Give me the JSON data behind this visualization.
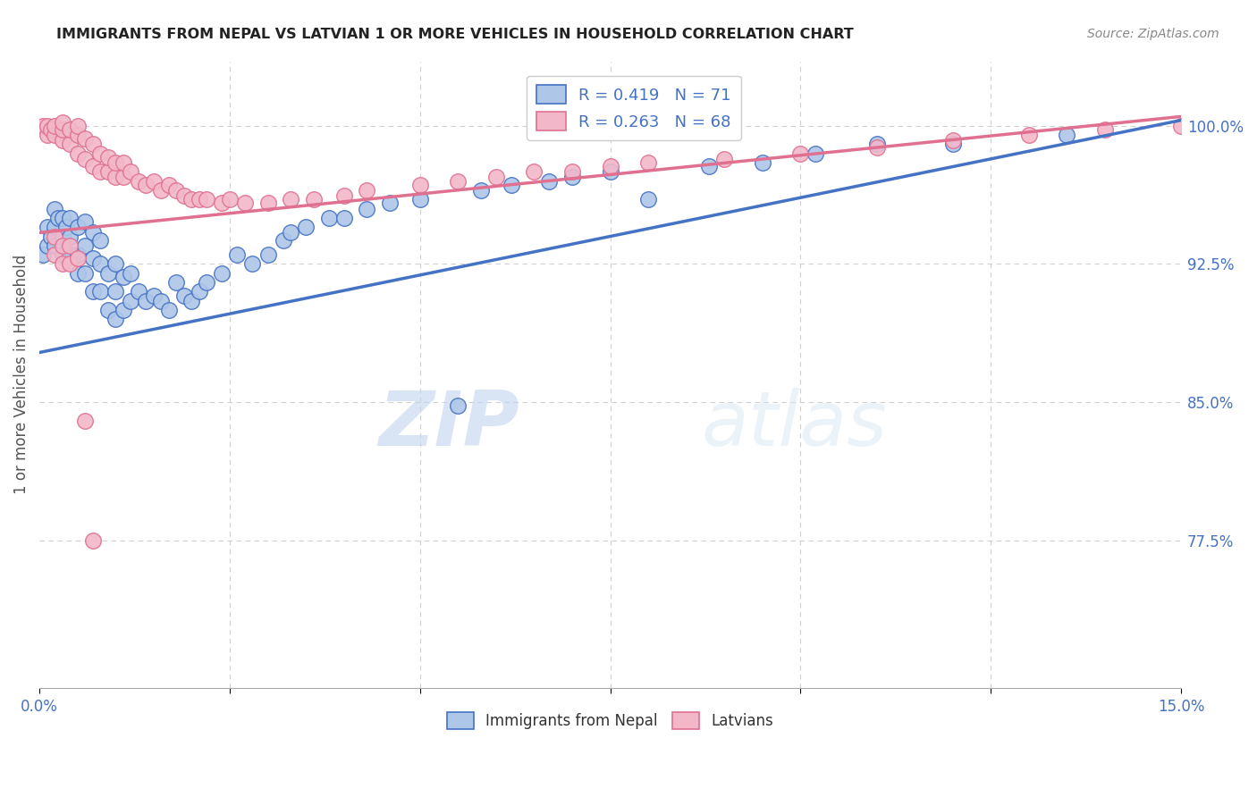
{
  "title": "IMMIGRANTS FROM NEPAL VS LATVIAN 1 OR MORE VEHICLES IN HOUSEHOLD CORRELATION CHART",
  "source": "Source: ZipAtlas.com",
  "ylabel": "1 or more Vehicles in Household",
  "ytick_labels": [
    "77.5%",
    "85.0%",
    "92.5%",
    "100.0%"
  ],
  "ytick_values": [
    0.775,
    0.85,
    0.925,
    1.0
  ],
  "xlim": [
    0.0,
    0.15
  ],
  "ylim": [
    0.695,
    1.035
  ],
  "color_nepal": "#aec6e8",
  "color_latvian": "#f2b8ca",
  "color_nepal_edge": "#4472c4",
  "color_latvian_edge": "#e07090",
  "color_nepal_line": "#4472c4",
  "color_latvian_line": "#e07090",
  "color_text_blue": "#4472c4",
  "watermark_zip": "ZIP",
  "watermark_atlas": "atlas",
  "background_color": "#ffffff",
  "grid_color": "#d0d0d0",
  "nepal_line_x0": 0.0,
  "nepal_line_y0": 0.877,
  "nepal_line_x1": 0.15,
  "nepal_line_y1": 1.003,
  "latvian_line_x0": 0.0,
  "latvian_line_y0": 0.942,
  "latvian_line_x1": 0.15,
  "latvian_line_y1": 1.005,
  "nepal_x": [
    0.0005,
    0.001,
    0.001,
    0.0015,
    0.002,
    0.002,
    0.002,
    0.0025,
    0.003,
    0.003,
    0.003,
    0.0035,
    0.004,
    0.004,
    0.004,
    0.005,
    0.005,
    0.005,
    0.006,
    0.006,
    0.006,
    0.007,
    0.007,
    0.007,
    0.008,
    0.008,
    0.008,
    0.009,
    0.009,
    0.01,
    0.01,
    0.01,
    0.011,
    0.011,
    0.012,
    0.012,
    0.013,
    0.014,
    0.015,
    0.016,
    0.017,
    0.018,
    0.019,
    0.02,
    0.021,
    0.022,
    0.024,
    0.026,
    0.028,
    0.03,
    0.032,
    0.033,
    0.035,
    0.038,
    0.04,
    0.043,
    0.046,
    0.05,
    0.055,
    0.058,
    0.062,
    0.067,
    0.07,
    0.075,
    0.08,
    0.088,
    0.095,
    0.102,
    0.11,
    0.12,
    0.135
  ],
  "nepal_y": [
    0.93,
    0.935,
    0.945,
    0.94,
    0.935,
    0.945,
    0.955,
    0.95,
    0.93,
    0.94,
    0.95,
    0.945,
    0.93,
    0.94,
    0.95,
    0.92,
    0.93,
    0.945,
    0.92,
    0.935,
    0.948,
    0.91,
    0.928,
    0.942,
    0.91,
    0.925,
    0.938,
    0.9,
    0.92,
    0.895,
    0.91,
    0.925,
    0.9,
    0.918,
    0.905,
    0.92,
    0.91,
    0.905,
    0.908,
    0.905,
    0.9,
    0.915,
    0.908,
    0.905,
    0.91,
    0.915,
    0.92,
    0.93,
    0.925,
    0.93,
    0.938,
    0.942,
    0.945,
    0.95,
    0.95,
    0.955,
    0.958,
    0.96,
    0.848,
    0.965,
    0.968,
    0.97,
    0.972,
    0.975,
    0.96,
    0.978,
    0.98,
    0.985,
    0.99,
    0.99,
    0.995
  ],
  "latvian_x": [
    0.0005,
    0.001,
    0.001,
    0.0015,
    0.002,
    0.002,
    0.003,
    0.003,
    0.003,
    0.004,
    0.004,
    0.005,
    0.005,
    0.005,
    0.006,
    0.006,
    0.007,
    0.007,
    0.008,
    0.008,
    0.009,
    0.009,
    0.01,
    0.01,
    0.011,
    0.011,
    0.012,
    0.013,
    0.014,
    0.015,
    0.016,
    0.017,
    0.018,
    0.019,
    0.02,
    0.021,
    0.022,
    0.024,
    0.025,
    0.027,
    0.03,
    0.033,
    0.036,
    0.04,
    0.043,
    0.05,
    0.055,
    0.06,
    0.065,
    0.07,
    0.075,
    0.08,
    0.09,
    0.1,
    0.11,
    0.12,
    0.13,
    0.14,
    0.15,
    0.002,
    0.002,
    0.003,
    0.003,
    0.004,
    0.004,
    0.005,
    0.006,
    0.007
  ],
  "latvian_y": [
    1.0,
    0.995,
    1.0,
    0.998,
    0.995,
    1.0,
    0.992,
    0.998,
    1.002,
    0.99,
    0.998,
    0.985,
    0.995,
    1.0,
    0.982,
    0.993,
    0.978,
    0.99,
    0.975,
    0.985,
    0.975,
    0.983,
    0.972,
    0.98,
    0.972,
    0.98,
    0.975,
    0.97,
    0.968,
    0.97,
    0.965,
    0.968,
    0.965,
    0.962,
    0.96,
    0.96,
    0.96,
    0.958,
    0.96,
    0.958,
    0.958,
    0.96,
    0.96,
    0.962,
    0.965,
    0.968,
    0.97,
    0.972,
    0.975,
    0.975,
    0.978,
    0.98,
    0.982,
    0.985,
    0.988,
    0.992,
    0.995,
    0.998,
    1.0,
    0.93,
    0.94,
    0.925,
    0.935,
    0.925,
    0.935,
    0.928,
    0.84,
    0.775
  ]
}
